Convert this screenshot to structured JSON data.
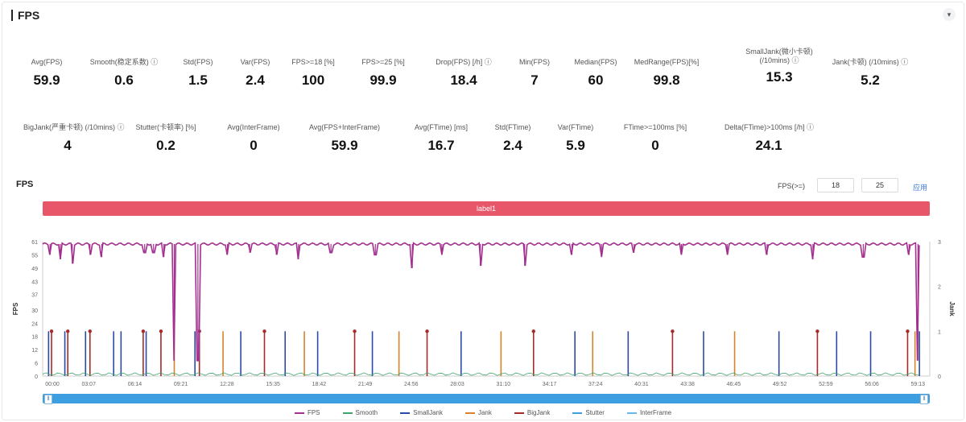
{
  "panel": {
    "title": "FPS",
    "collapse_icon": "chevron-down-icon"
  },
  "stats_row1": [
    {
      "label": "Avg(FPS)",
      "value": "59.9"
    },
    {
      "label": "Smooth(稳定系数) ⓘ",
      "value": "0.6"
    },
    {
      "label": "Std(FPS)",
      "value": "1.5"
    },
    {
      "label": "Var(FPS)",
      "value": "2.4"
    },
    {
      "label": "FPS>=18 [%]",
      "value": "100"
    },
    {
      "label": "FPS>=25 [%]",
      "value": "99.9"
    },
    {
      "label": "Drop(FPS) [/h] ⓘ",
      "value": "18.4"
    },
    {
      "label": "Min(FPS)",
      "value": "7"
    },
    {
      "label": "Median(FPS)",
      "value": "60"
    },
    {
      "label": "MedRange(FPS)[%]",
      "value": "99.8"
    },
    {
      "label": "SmallJank(微小卡顿) (/10mins) ⓘ",
      "value": "15.3"
    },
    {
      "label": "Jank(卡顿) (/10mins) ⓘ",
      "value": "5.2"
    }
  ],
  "stats_row2": [
    {
      "label": "BigJank(严重卡顿) (/10mins) ⓘ",
      "value": "4"
    },
    {
      "label": "Stutter(卡顿率) [%]",
      "value": "0.2"
    },
    {
      "label": "Avg(InterFrame)",
      "value": "0"
    },
    {
      "label": "Avg(FPS+InterFrame)",
      "value": "59.9"
    },
    {
      "label": "Avg(FTime) [ms]",
      "value": "16.7"
    },
    {
      "label": "Std(FTime)",
      "value": "2.4"
    },
    {
      "label": "Var(FTime)",
      "value": "5.9"
    },
    {
      "label": "FTime>=100ms [%]",
      "value": "0"
    },
    {
      "label": "Delta(FTime)>100ms [/h] ⓘ",
      "value": "24.1"
    }
  ],
  "chart": {
    "title": "FPS",
    "threshold_label": "FPS(>=)",
    "threshold_low": "18",
    "threshold_high": "25",
    "apply_label": "应用",
    "label_bar": "label1",
    "left_axis_title": "FPS",
    "right_axis_title": "Jank"
  },
  "colors": {
    "fps": "#a3308f",
    "smooth": "#3fa36b",
    "smalljank": "#2b4aa8",
    "jank": "#d9822b",
    "bigjank": "#a52a2a",
    "stutter": "#3d9ee0",
    "interframe": "#66b8e8",
    "label_bar": "#e8566a",
    "slider": "#3d9ee0"
  },
  "chart_data": {
    "type": "line",
    "title": "FPS",
    "ylabel": "FPS",
    "y2label": "Jank",
    "ylim": [
      0,
      61
    ],
    "y2lim": [
      0,
      3
    ],
    "yticks": [
      0,
      6,
      12,
      18,
      24,
      30,
      37,
      43,
      49,
      55,
      61
    ],
    "y2ticks": [
      0,
      1,
      2,
      3
    ],
    "x_ticks": [
      "00:00",
      "03:07",
      "06:14",
      "09:21",
      "12:28",
      "15:35",
      "18:42",
      "21:49",
      "24:56",
      "28:03",
      "31:10",
      "34:17",
      "37:24",
      "40:31",
      "43:38",
      "46:45",
      "49:52",
      "52:59",
      "56:06",
      "59:13"
    ],
    "x_range_min": [
      0,
      60
    ],
    "fps_baseline": 59.9,
    "fps_dips": [
      {
        "t": 0.5,
        "v": 55
      },
      {
        "t": 1.2,
        "v": 53
      },
      {
        "t": 2.0,
        "v": 51
      },
      {
        "t": 3.2,
        "v": 55
      },
      {
        "t": 4.0,
        "v": 54
      },
      {
        "t": 6.9,
        "v": 56
      },
      {
        "t": 7.5,
        "v": 56
      },
      {
        "t": 8.2,
        "v": 54
      },
      {
        "t": 8.9,
        "v": 7
      },
      {
        "t": 10.5,
        "v": 7
      },
      {
        "t": 12.5,
        "v": 55
      },
      {
        "t": 14.0,
        "v": 56
      },
      {
        "t": 15.8,
        "v": 55
      },
      {
        "t": 17.3,
        "v": 53
      },
      {
        "t": 19.5,
        "v": 56
      },
      {
        "t": 22.5,
        "v": 55
      },
      {
        "t": 25.0,
        "v": 49
      },
      {
        "t": 27.0,
        "v": 55
      },
      {
        "t": 29.6,
        "v": 50
      },
      {
        "t": 32.6,
        "v": 50
      },
      {
        "t": 35.8,
        "v": 55
      },
      {
        "t": 37.8,
        "v": 54
      },
      {
        "t": 40.0,
        "v": 56
      },
      {
        "t": 43.2,
        "v": 55
      },
      {
        "t": 46.3,
        "v": 55
      },
      {
        "t": 49.0,
        "v": 55
      },
      {
        "t": 52.1,
        "v": 53
      },
      {
        "t": 55.5,
        "v": 54
      },
      {
        "t": 58.6,
        "v": 55
      },
      {
        "t": 59.2,
        "v": 7
      }
    ],
    "series": [
      {
        "name": "FPS",
        "color": "#a3308f"
      },
      {
        "name": "Smooth",
        "color": "#3fa36b"
      },
      {
        "name": "SmallJank",
        "color": "#2b4aa8"
      },
      {
        "name": "Jank",
        "color": "#d9822b"
      },
      {
        "name": "BigJank",
        "color": "#a52a2a"
      },
      {
        "name": "Stutter",
        "color": "#3d9ee0"
      },
      {
        "name": "InterFrame",
        "color": "#66b8e8"
      }
    ],
    "spikes": [
      {
        "t": 0.4,
        "type": "SmallJank",
        "h": 1
      },
      {
        "t": 0.6,
        "type": "BigJank",
        "h": 1
      },
      {
        "t": 1.5,
        "type": "SmallJank",
        "h": 1
      },
      {
        "t": 1.7,
        "type": "BigJank",
        "h": 1
      },
      {
        "t": 2.9,
        "type": "SmallJank",
        "h": 1
      },
      {
        "t": 3.2,
        "type": "BigJank",
        "h": 1
      },
      {
        "t": 4.8,
        "type": "SmallJank",
        "h": 1
      },
      {
        "t": 5.3,
        "type": "SmallJank",
        "h": 1
      },
      {
        "t": 6.8,
        "type": "BigJank",
        "h": 1
      },
      {
        "t": 7.0,
        "type": "SmallJank",
        "h": 1
      },
      {
        "t": 8.0,
        "type": "BigJank",
        "h": 1
      },
      {
        "t": 8.9,
        "type": "Jank",
        "h": 1
      },
      {
        "t": 10.3,
        "type": "SmallJank",
        "h": 1
      },
      {
        "t": 10.6,
        "type": "BigJank",
        "h": 1
      },
      {
        "t": 12.2,
        "type": "Jank",
        "h": 1
      },
      {
        "t": 13.4,
        "type": "SmallJank",
        "h": 1
      },
      {
        "t": 15.0,
        "type": "BigJank",
        "h": 1
      },
      {
        "t": 16.4,
        "type": "SmallJank",
        "h": 1
      },
      {
        "t": 17.7,
        "type": "Jank",
        "h": 1
      },
      {
        "t": 18.6,
        "type": "SmallJank",
        "h": 1
      },
      {
        "t": 21.1,
        "type": "BigJank",
        "h": 1
      },
      {
        "t": 22.3,
        "type": "SmallJank",
        "h": 1
      },
      {
        "t": 24.1,
        "type": "Jank",
        "h": 1
      },
      {
        "t": 26.0,
        "type": "BigJank",
        "h": 1
      },
      {
        "t": 28.3,
        "type": "SmallJank",
        "h": 1
      },
      {
        "t": 31.0,
        "type": "Jank",
        "h": 1
      },
      {
        "t": 33.2,
        "type": "BigJank",
        "h": 1
      },
      {
        "t": 36.0,
        "type": "SmallJank",
        "h": 1
      },
      {
        "t": 37.2,
        "type": "Jank",
        "h": 1
      },
      {
        "t": 39.6,
        "type": "SmallJank",
        "h": 1
      },
      {
        "t": 42.6,
        "type": "BigJank",
        "h": 1
      },
      {
        "t": 44.7,
        "type": "SmallJank",
        "h": 1
      },
      {
        "t": 46.8,
        "type": "Jank",
        "h": 1
      },
      {
        "t": 49.8,
        "type": "SmallJank",
        "h": 1
      },
      {
        "t": 52.4,
        "type": "BigJank",
        "h": 1
      },
      {
        "t": 53.7,
        "type": "SmallJank",
        "h": 1
      },
      {
        "t": 56.0,
        "type": "SmallJank",
        "h": 1
      },
      {
        "t": 58.5,
        "type": "BigJank",
        "h": 1
      },
      {
        "t": 59.0,
        "type": "Jank",
        "h": 1
      },
      {
        "t": 59.3,
        "type": "SmallJank",
        "h": 1
      }
    ]
  }
}
